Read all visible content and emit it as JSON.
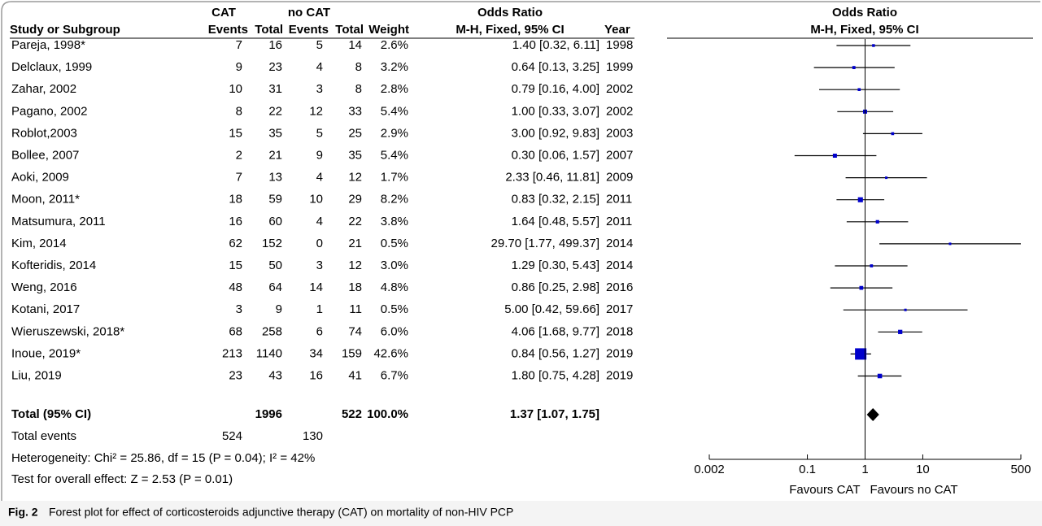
{
  "table": {
    "group_headers": [
      "CAT",
      "no CAT",
      "Odds Ratio"
    ],
    "headers": [
      "Study or Subgroup",
      "Events",
      "Total",
      "Events",
      "Total",
      "Weight",
      "M-H, Fixed, 95% CI",
      "Year"
    ],
    "rows": [
      {
        "study": "Pareja, 1998*",
        "cat_events": 7,
        "cat_total": 16,
        "nocat_events": 5,
        "nocat_total": 14,
        "weight": 2.6,
        "weight_label": "2.6%",
        "or": 1.4,
        "ci": [
          0.32,
          6.11
        ],
        "or_label": "1.40 [0.32, 6.11]",
        "year": 1998
      },
      {
        "study": "Delclaux, 1999",
        "cat_events": 9,
        "cat_total": 23,
        "nocat_events": 4,
        "nocat_total": 8,
        "weight": 3.2,
        "weight_label": "3.2%",
        "or": 0.64,
        "ci": [
          0.13,
          3.25
        ],
        "or_label": "0.64 [0.13, 3.25]",
        "year": 1999
      },
      {
        "study": "Zahar, 2002",
        "cat_events": 10,
        "cat_total": 31,
        "nocat_events": 3,
        "nocat_total": 8,
        "weight": 2.8,
        "weight_label": "2.8%",
        "or": 0.79,
        "ci": [
          0.16,
          4.0
        ],
        "or_label": "0.79 [0.16, 4.00]",
        "year": 2002
      },
      {
        "study": "Pagano, 2002",
        "cat_events": 8,
        "cat_total": 22,
        "nocat_events": 12,
        "nocat_total": 33,
        "weight": 5.4,
        "weight_label": "5.4%",
        "or": 1.0,
        "ci": [
          0.33,
          3.07
        ],
        "or_label": "1.00 [0.33, 3.07]",
        "year": 2002
      },
      {
        "study": "Roblot,2003",
        "cat_events": 15,
        "cat_total": 35,
        "nocat_events": 5,
        "nocat_total": 25,
        "weight": 2.9,
        "weight_label": "2.9%",
        "or": 3.0,
        "ci": [
          0.92,
          9.83
        ],
        "or_label": "3.00 [0.92, 9.83]",
        "year": 2003
      },
      {
        "study": "Bollee, 2007",
        "cat_events": 2,
        "cat_total": 21,
        "nocat_events": 9,
        "nocat_total": 35,
        "weight": 5.4,
        "weight_label": "5.4%",
        "or": 0.3,
        "ci": [
          0.06,
          1.57
        ],
        "or_label": "0.30 [0.06, 1.57]",
        "year": 2007
      },
      {
        "study": "Aoki, 2009",
        "cat_events": 7,
        "cat_total": 13,
        "nocat_events": 4,
        "nocat_total": 12,
        "weight": 1.7,
        "weight_label": "1.7%",
        "or": 2.33,
        "ci": [
          0.46,
          11.81
        ],
        "or_label": "2.33 [0.46, 11.81]",
        "year": 2009
      },
      {
        "study": "Moon, 2011*",
        "cat_events": 18,
        "cat_total": 59,
        "nocat_events": 10,
        "nocat_total": 29,
        "weight": 8.2,
        "weight_label": "8.2%",
        "or": 0.83,
        "ci": [
          0.32,
          2.15
        ],
        "or_label": "0.83 [0.32, 2.15]",
        "year": 2011
      },
      {
        "study": "Matsumura, 2011",
        "cat_events": 16,
        "cat_total": 60,
        "nocat_events": 4,
        "nocat_total": 22,
        "weight": 3.8,
        "weight_label": "3.8%",
        "or": 1.64,
        "ci": [
          0.48,
          5.57
        ],
        "or_label": "1.64 [0.48, 5.57]",
        "year": 2011
      },
      {
        "study": "Kim, 2014",
        "cat_events": 62,
        "cat_total": 152,
        "nocat_events": 0,
        "nocat_total": 21,
        "weight": 0.5,
        "weight_label": "0.5%",
        "or": 29.7,
        "ci": [
          1.77,
          499.37
        ],
        "or_label": "29.70 [1.77, 499.37]",
        "year": 2014
      },
      {
        "study": "Kofteridis, 2014",
        "cat_events": 15,
        "cat_total": 50,
        "nocat_events": 3,
        "nocat_total": 12,
        "weight": 3.0,
        "weight_label": "3.0%",
        "or": 1.29,
        "ci": [
          0.3,
          5.43
        ],
        "or_label": "1.29 [0.30, 5.43]",
        "year": 2014
      },
      {
        "study": "Weng, 2016",
        "cat_events": 48,
        "cat_total": 64,
        "nocat_events": 14,
        "nocat_total": 18,
        "weight": 4.8,
        "weight_label": "4.8%",
        "or": 0.86,
        "ci": [
          0.25,
          2.98
        ],
        "or_label": "0.86 [0.25, 2.98]",
        "year": 2016
      },
      {
        "study": "Kotani, 2017",
        "cat_events": 3,
        "cat_total": 9,
        "nocat_events": 1,
        "nocat_total": 11,
        "weight": 0.5,
        "weight_label": "0.5%",
        "or": 5.0,
        "ci": [
          0.42,
          59.66
        ],
        "or_label": "5.00 [0.42, 59.66]",
        "year": 2017
      },
      {
        "study": "Wieruszewski, 2018*",
        "cat_events": 68,
        "cat_total": 258,
        "nocat_events": 6,
        "nocat_total": 74,
        "weight": 6.0,
        "weight_label": "6.0%",
        "or": 4.06,
        "ci": [
          1.68,
          9.77
        ],
        "or_label": "4.06 [1.68, 9.77]",
        "year": 2018
      },
      {
        "study": "Inoue, 2019*",
        "cat_events": 213,
        "cat_total": 1140,
        "nocat_events": 34,
        "nocat_total": 159,
        "weight": 42.6,
        "weight_label": "42.6%",
        "or": 0.84,
        "ci": [
          0.56,
          1.27
        ],
        "or_label": "0.84 [0.56, 1.27]",
        "year": 2019
      },
      {
        "study": "Liu, 2019",
        "cat_events": 23,
        "cat_total": 43,
        "nocat_events": 16,
        "nocat_total": 41,
        "weight": 6.7,
        "weight_label": "6.7%",
        "or": 1.8,
        "ci": [
          0.75,
          4.28
        ],
        "or_label": "1.80 [0.75, 4.28]",
        "year": 2019
      }
    ],
    "total": {
      "label": "Total (95% CI)",
      "cat_total": 1996,
      "nocat_total": 522,
      "weight_label": "100.0%",
      "or": 1.37,
      "ci": [
        1.07,
        1.75
      ],
      "or_label": "1.37 [1.07, 1.75]"
    },
    "total_events": {
      "label": "Total events",
      "cat": 524,
      "nocat": 130
    },
    "heterogeneity": "Heterogeneity: Chi² = 25.86, df = 15 (P = 0.04); I² = 42%",
    "overall_effect": "Test for overall effect: Z = 2.53 (P = 0.01)"
  },
  "plot": {
    "title": "Odds Ratio",
    "subtitle": "M-H, Fixed, 95% CI",
    "log": true,
    "xlim": [
      0.002,
      500
    ],
    "xticks": [
      0.002,
      0.1,
      1,
      10,
      500
    ],
    "favours_left": "Favours CAT",
    "favours_right": "Favours no CAT",
    "color": "#0000cc"
  },
  "caption": {
    "label": "Fig. 2",
    "text": "Forest plot for effect of corticosteroids adjunctive therapy (CAT) on mortality of non-HIV PCP"
  }
}
